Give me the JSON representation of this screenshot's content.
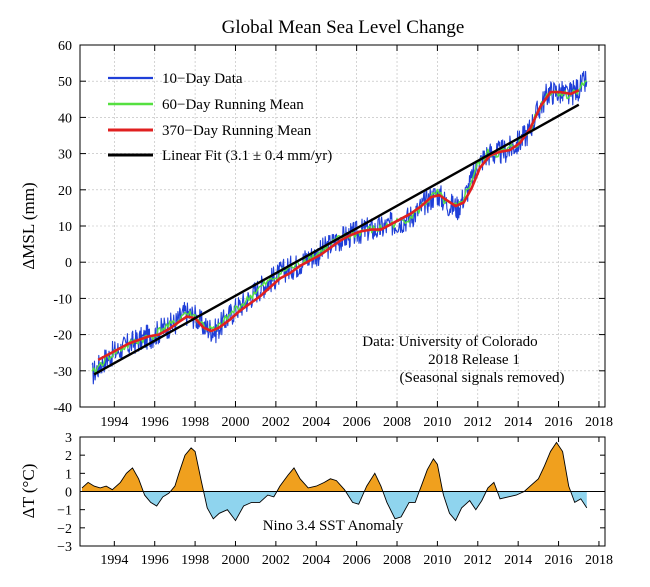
{
  "chart_data": [
    {
      "type": "line",
      "title": "Global Mean Sea Level Change",
      "xlabel": "",
      "ylabel": "ΔMSL (mm)",
      "xlim": [
        1992.3,
        2018.3
      ],
      "ylim": [
        -40,
        60
      ],
      "xticks": [
        1994,
        1996,
        1998,
        2000,
        2002,
        2004,
        2006,
        2008,
        2010,
        2012,
        2014,
        2016,
        2018
      ],
      "yticks": [
        -40,
        -30,
        -20,
        -10,
        0,
        10,
        20,
        30,
        40,
        50,
        60
      ],
      "grid": true,
      "legend_position": "top-left",
      "annotation": [
        "Data: University of Colorado",
        "2018 Release 1",
        "(Seasonal signals removed)"
      ],
      "series": [
        {
          "name": "10−Day Data",
          "color": "#1f3fd8",
          "x": [
            1992.9,
            1993.5,
            1994.0,
            1994.5,
            1995.0,
            1995.5,
            1996.0,
            1996.5,
            1997.0,
            1997.5,
            1998.0,
            1998.5,
            1999.0,
            1999.5,
            2000.0,
            2000.5,
            2001.0,
            2001.5,
            2002.0,
            2002.5,
            2003.0,
            2003.5,
            2004.0,
            2004.5,
            2005.0,
            2005.5,
            2006.0,
            2006.5,
            2007.0,
            2007.5,
            2008.0,
            2008.5,
            2009.0,
            2009.5,
            2010.0,
            2010.5,
            2011.0,
            2011.5,
            2012.0,
            2012.5,
            2013.0,
            2013.5,
            2014.0,
            2014.5,
            2015.0,
            2015.5,
            2016.0,
            2016.5,
            2017.0,
            2017.4
          ],
          "values": [
            -31,
            -27,
            -25,
            -23.5,
            -22,
            -21,
            -20,
            -18,
            -17,
            -14,
            -15,
            -18,
            -19,
            -16,
            -13,
            -11,
            -8,
            -6,
            -4,
            -2,
            -1,
            1,
            2,
            4,
            6,
            7,
            8,
            9,
            9,
            10,
            11,
            12,
            14,
            17,
            19,
            16,
            15,
            20,
            27,
            30,
            30,
            31,
            33,
            36,
            42,
            47,
            47,
            46,
            48,
            50
          ]
        },
        {
          "name": "60−Day Running Mean",
          "color": "#55e040",
          "x": [
            1992.9,
            1993.5,
            1994.0,
            1994.5,
            1995.0,
            1995.5,
            1996.0,
            1996.5,
            1997.0,
            1997.5,
            1998.0,
            1998.5,
            1999.0,
            1999.5,
            2000.0,
            2000.5,
            2001.0,
            2001.5,
            2002.0,
            2002.5,
            2003.0,
            2003.5,
            2004.0,
            2004.5,
            2005.0,
            2005.5,
            2006.0,
            2006.5,
            2007.0,
            2007.5,
            2008.0,
            2008.5,
            2009.0,
            2009.5,
            2010.0,
            2010.5,
            2011.0,
            2011.5,
            2012.0,
            2012.5,
            2013.0,
            2013.5,
            2014.0,
            2014.5,
            2015.0,
            2015.5,
            2016.0,
            2016.5,
            2017.0,
            2017.4
          ],
          "values": [
            -31,
            -27,
            -25,
            -23.5,
            -22,
            -21,
            -20,
            -18,
            -17,
            -14,
            -15,
            -18,
            -19,
            -16,
            -13,
            -11,
            -8,
            -6,
            -4,
            -2,
            -1,
            1,
            2,
            4,
            6,
            7,
            8,
            9,
            9,
            10,
            11,
            12,
            14,
            17,
            19,
            16,
            15,
            20,
            27,
            30,
            30,
            31,
            33,
            36,
            42,
            47,
            47,
            46,
            48,
            50
          ]
        },
        {
          "name": "370−Day Running Mean",
          "color": "#e02020",
          "x": [
            1993.2,
            1993.7,
            1994.2,
            1994.7,
            1995.2,
            1995.7,
            1996.2,
            1996.7,
            1997.2,
            1997.6,
            1998.0,
            1998.4,
            1998.8,
            1999.2,
            1999.7,
            2000.2,
            2000.7,
            2001.2,
            2001.7,
            2002.2,
            2002.7,
            2003.2,
            2003.7,
            2004.2,
            2004.7,
            2005.2,
            2005.7,
            2006.2,
            2006.7,
            2007.2,
            2007.7,
            2008.2,
            2008.7,
            2009.2,
            2009.7,
            2010.1,
            2010.5,
            2010.9,
            2011.3,
            2011.7,
            2012.1,
            2012.6,
            2013.1,
            2013.6,
            2014.1,
            2014.6,
            2015.1,
            2015.6,
            2016.1,
            2016.6,
            2017.0
          ],
          "values": [
            -27,
            -25.5,
            -24,
            -22.5,
            -21.5,
            -20.5,
            -20,
            -18.5,
            -16.5,
            -15,
            -15.5,
            -18,
            -19,
            -18,
            -16,
            -13.5,
            -11.5,
            -9.5,
            -7,
            -4.5,
            -3,
            -1,
            0.5,
            2,
            4,
            6,
            7.5,
            8.5,
            9,
            9,
            10.5,
            12,
            13.5,
            15.5,
            18,
            18.5,
            17,
            15.5,
            16.5,
            20.5,
            26,
            29.5,
            30.5,
            31,
            33,
            37,
            43,
            47,
            47,
            46.5,
            47.5
          ]
        },
        {
          "name": "Linear Fit (3.1 ± 0.4 mm/yr)",
          "color": "#000000",
          "x": [
            1993.0,
            2017.0
          ],
          "values": [
            -31,
            43.5
          ]
        }
      ]
    },
    {
      "type": "area",
      "title": "",
      "xlabel": "",
      "ylabel": "ΔT (°C)",
      "xlim": [
        1992.3,
        2018.3
      ],
      "ylim": [
        -3,
        3
      ],
      "xticks": [
        1994,
        1996,
        1998,
        2000,
        2002,
        2004,
        2006,
        2008,
        2010,
        2012,
        2014,
        2016,
        2018
      ],
      "yticks": [
        -3,
        -2,
        -1,
        0,
        1,
        2,
        3
      ],
      "label": "Nino 3.4 SST Anomaly",
      "positive_color": "#f0a01e",
      "negative_color": "#8fd4ee",
      "x": [
        1992.4,
        1992.7,
        1993.0,
        1993.3,
        1993.6,
        1993.9,
        1994.3,
        1994.6,
        1994.9,
        1995.2,
        1995.5,
        1995.8,
        1996.1,
        1996.4,
        1996.7,
        1997.0,
        1997.2,
        1997.5,
        1997.8,
        1998.0,
        1998.3,
        1998.6,
        1998.9,
        1999.2,
        1999.6,
        2000.0,
        2000.4,
        2000.8,
        2001.2,
        2001.6,
        2001.9,
        2002.2,
        2002.6,
        2002.9,
        2003.2,
        2003.6,
        2004.0,
        2004.4,
        2004.7,
        2005.0,
        2005.4,
        2005.8,
        2006.1,
        2006.5,
        2006.9,
        2007.2,
        2007.5,
        2007.9,
        2008.2,
        2008.6,
        2008.9,
        2009.2,
        2009.5,
        2009.8,
        2010.0,
        2010.3,
        2010.6,
        2010.9,
        2011.2,
        2011.6,
        2011.9,
        2012.2,
        2012.5,
        2012.8,
        2013.1,
        2013.5,
        2013.9,
        2014.3,
        2014.7,
        2015.0,
        2015.3,
        2015.6,
        2015.9,
        2016.2,
        2016.5,
        2016.8,
        2017.1,
        2017.4
      ],
      "values": [
        0.2,
        0.5,
        0.3,
        0.2,
        0.3,
        0.1,
        0.5,
        1.0,
        1.3,
        0.7,
        -0.2,
        -0.6,
        -0.8,
        -0.3,
        -0.1,
        0.3,
        1.0,
        2.0,
        2.4,
        2.2,
        0.6,
        -0.9,
        -1.5,
        -1.2,
        -1.0,
        -1.6,
        -0.8,
        -0.6,
        -0.6,
        -0.2,
        -0.3,
        0.3,
        0.9,
        1.3,
        0.7,
        0.2,
        0.3,
        0.5,
        0.7,
        0.6,
        0.1,
        -0.6,
        -0.7,
        0.3,
        1.0,
        0.3,
        -0.6,
        -1.5,
        -1.4,
        -0.6,
        -0.6,
        0.3,
        1.2,
        1.8,
        1.5,
        -0.2,
        -1.2,
        -1.6,
        -0.9,
        -0.5,
        -1.0,
        -0.5,
        0.2,
        0.5,
        -0.4,
        -0.3,
        -0.2,
        0.0,
        0.4,
        0.7,
        1.4,
        2.2,
        2.7,
        2.2,
        0.3,
        -0.6,
        -0.4,
        -0.9
      ]
    }
  ]
}
